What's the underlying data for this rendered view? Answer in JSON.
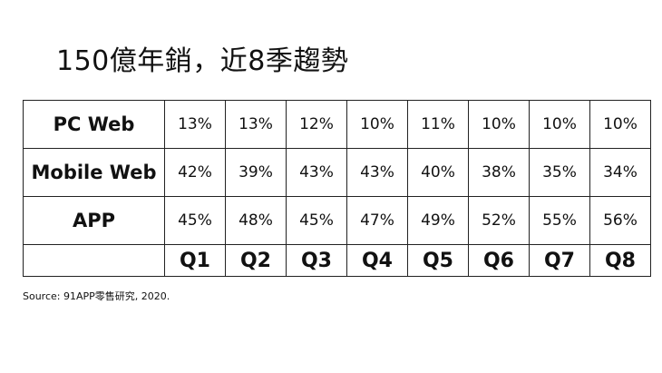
{
  "title": "150億年銷，近8季趨勢",
  "source": "Source: 91APP零售研究, 2020.",
  "chart_data": {
    "type": "table",
    "title": "150億年銷，近8季趨勢",
    "categories": [
      "Q1",
      "Q2",
      "Q3",
      "Q4",
      "Q5",
      "Q6",
      "Q7",
      "Q8"
    ],
    "unit": "%",
    "series": [
      {
        "name": "PC Web",
        "values": [
          13,
          13,
          12,
          10,
          11,
          10,
          10,
          10
        ]
      },
      {
        "name": "Mobile Web",
        "values": [
          42,
          39,
          43,
          43,
          40,
          38,
          35,
          34
        ]
      },
      {
        "name": "APP",
        "values": [
          45,
          48,
          45,
          47,
          49,
          52,
          55,
          56
        ]
      }
    ]
  }
}
